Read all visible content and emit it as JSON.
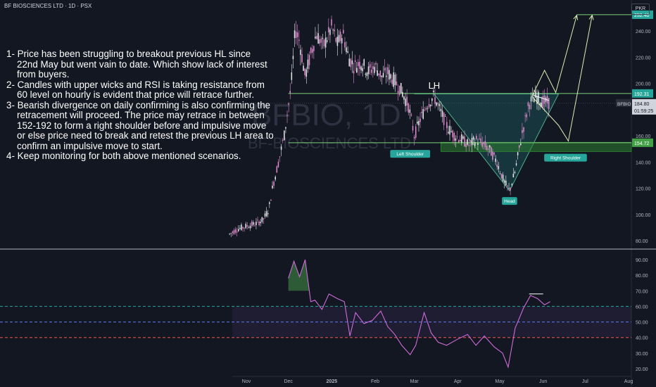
{
  "header": {
    "symbol_line": "BF BIOSCIENCES LTD · 1D · PSX",
    "currency": "PKR"
  },
  "watermark": {
    "ticker": "BFBIO, 1D",
    "company": "BF-BIOSCIENCES LTD"
  },
  "notes": [
    "1- Price has been struggling to breakout previous HL since 22nd May but went vain to date. Which show lack of interest from buyers.",
    "2- Candles with upper wicks and RSI is taking resistance from 60 level on hourly is evident that price will retrace further.",
    "3- Bearish divergence on daily confirming is also confirming the retracement will proceed. The price may retrace in between 152-192 to form a right shoulder before and impulsive move or else price need to break and retest the previous LH area to confirm an impulsive move to start.",
    "4- Keep monitoring for both above mentioned scenarios."
  ],
  "chart_data": [
    {
      "type": "candlestick",
      "ylim": [
        78,
        258
      ],
      "y_ticks": [
        80,
        100,
        120,
        140,
        160,
        180,
        200,
        220,
        240
      ],
      "x_ticks": [
        "Nov",
        "Dec",
        "2025",
        "Feb",
        "Mar",
        "Apr",
        "May",
        "Jun",
        "Jul",
        "Aug"
      ],
      "price_path": [
        [
          "2024-10-20",
          85
        ],
        [
          "2024-10-26",
          89
        ],
        [
          "2024-11-01",
          91
        ],
        [
          "2024-11-08",
          93
        ],
        [
          "2024-11-13",
          96
        ],
        [
          "2024-11-17",
          104
        ],
        [
          "2024-11-20",
          122
        ],
        [
          "2024-11-24",
          140
        ],
        [
          "2024-11-28",
          160
        ],
        [
          "2024-12-03",
          198
        ],
        [
          "2024-12-06",
          242
        ],
        [
          "2024-12-09",
          232
        ],
        [
          "2024-12-13",
          205
        ],
        [
          "2024-12-17",
          222
        ],
        [
          "2024-12-21",
          238
        ],
        [
          "2024-12-26",
          228
        ],
        [
          "2025-01-01",
          243
        ],
        [
          "2025-01-05",
          230
        ],
        [
          "2025-01-09",
          238
        ],
        [
          "2025-01-13",
          220
        ],
        [
          "2025-01-17",
          213
        ],
        [
          "2025-01-22",
          216
        ],
        [
          "2025-01-27",
          209
        ],
        [
          "2025-02-01",
          213
        ],
        [
          "2025-02-06",
          205
        ],
        [
          "2025-02-10",
          208
        ],
        [
          "2025-02-15",
          202
        ],
        [
          "2025-02-20",
          194
        ],
        [
          "2025-02-25",
          182
        ],
        [
          "2025-03-01",
          160
        ],
        [
          "2025-03-05",
          172
        ],
        [
          "2025-03-10",
          184
        ],
        [
          "2025-03-15",
          190
        ],
        [
          "2025-03-20",
          178
        ],
        [
          "2025-03-25",
          166
        ],
        [
          "2025-03-30",
          160
        ],
        [
          "2025-04-04",
          157
        ],
        [
          "2025-04-09",
          153
        ],
        [
          "2025-04-14",
          157
        ],
        [
          "2025-04-19",
          154
        ],
        [
          "2025-04-24",
          149
        ],
        [
          "2025-04-29",
          140
        ],
        [
          "2025-05-04",
          125
        ],
        [
          "2025-05-08",
          118
        ],
        [
          "2025-05-12",
          133
        ],
        [
          "2025-05-17",
          162
        ],
        [
          "2025-05-22",
          185
        ],
        [
          "2025-05-27",
          190
        ],
        [
          "2025-06-01",
          186
        ],
        [
          "2025-06-06",
          185
        ]
      ],
      "horizontal_levels": [
        {
          "value": 192.31,
          "label": "192.31"
        },
        {
          "value": 154.72,
          "label": "154.72"
        },
        {
          "value": 252.4,
          "label": "252.40"
        }
      ],
      "last_price": {
        "label": "BFBIO",
        "value": "184.80",
        "countdown": "01:59:25"
      },
      "annotations": [
        {
          "text": "LH",
          "kind": "label"
        },
        {
          "text": "Left Shoulder",
          "kind": "badge"
        },
        {
          "text": "Head",
          "kind": "badge"
        },
        {
          "text": "Right Shoulder",
          "kind": "badge"
        }
      ],
      "projection_paths": [
        [
          [
            "2025-05-24",
            190
          ],
          [
            "2025-06-02",
            210
          ],
          [
            "2025-06-10",
            193
          ],
          [
            "2025-06-25",
            252
          ]
        ],
        [
          [
            "2025-05-24",
            190
          ],
          [
            "2025-06-12",
            168
          ],
          [
            "2025-06-19",
            156
          ],
          [
            "2025-07-06",
            252
          ]
        ]
      ],
      "pattern_polygon": [
        [
          "2025-03-01",
          192
        ],
        [
          "2025-03-15",
          192
        ],
        [
          "2025-05-08",
          118
        ],
        [
          "2025-06-12",
          192
        ]
      ]
    },
    {
      "type": "line",
      "name": "RSI",
      "ylim": [
        15,
        95
      ],
      "y_ticks": [
        20,
        30,
        40,
        50,
        60,
        70,
        80,
        90
      ],
      "levels": [
        60,
        50,
        40
      ],
      "values": [
        [
          "2024-12-01",
          78
        ],
        [
          "2024-12-05",
          89
        ],
        [
          "2024-12-09",
          79
        ],
        [
          "2024-12-13",
          90
        ],
        [
          "2024-12-17",
          63
        ],
        [
          "2024-12-20",
          64
        ],
        [
          "2024-12-25",
          58
        ],
        [
          "2024-12-30",
          68
        ],
        [
          "2025-01-05",
          65
        ],
        [
          "2025-01-10",
          63
        ],
        [
          "2025-01-14",
          41
        ],
        [
          "2025-01-18",
          56
        ],
        [
          "2025-01-24",
          49
        ],
        [
          "2025-01-30",
          51
        ],
        [
          "2025-02-05",
          57
        ],
        [
          "2025-02-10",
          47
        ],
        [
          "2025-02-15",
          42
        ],
        [
          "2025-02-20",
          35
        ],
        [
          "2025-02-26",
          29
        ],
        [
          "2025-03-02",
          35
        ],
        [
          "2025-03-08",
          56
        ],
        [
          "2025-03-13",
          43
        ],
        [
          "2025-03-18",
          37
        ],
        [
          "2025-03-24",
          35
        ],
        [
          "2025-04-01",
          39
        ],
        [
          "2025-04-08",
          42
        ],
        [
          "2025-04-14",
          35
        ],
        [
          "2025-04-20",
          41
        ],
        [
          "2025-04-27",
          34
        ],
        [
          "2025-05-03",
          30
        ],
        [
          "2025-05-07",
          21
        ],
        [
          "2025-05-12",
          46
        ],
        [
          "2025-05-18",
          59
        ],
        [
          "2025-05-23",
          67
        ],
        [
          "2025-05-28",
          65
        ],
        [
          "2025-06-02",
          61
        ],
        [
          "2025-06-06",
          63
        ]
      ]
    }
  ]
}
